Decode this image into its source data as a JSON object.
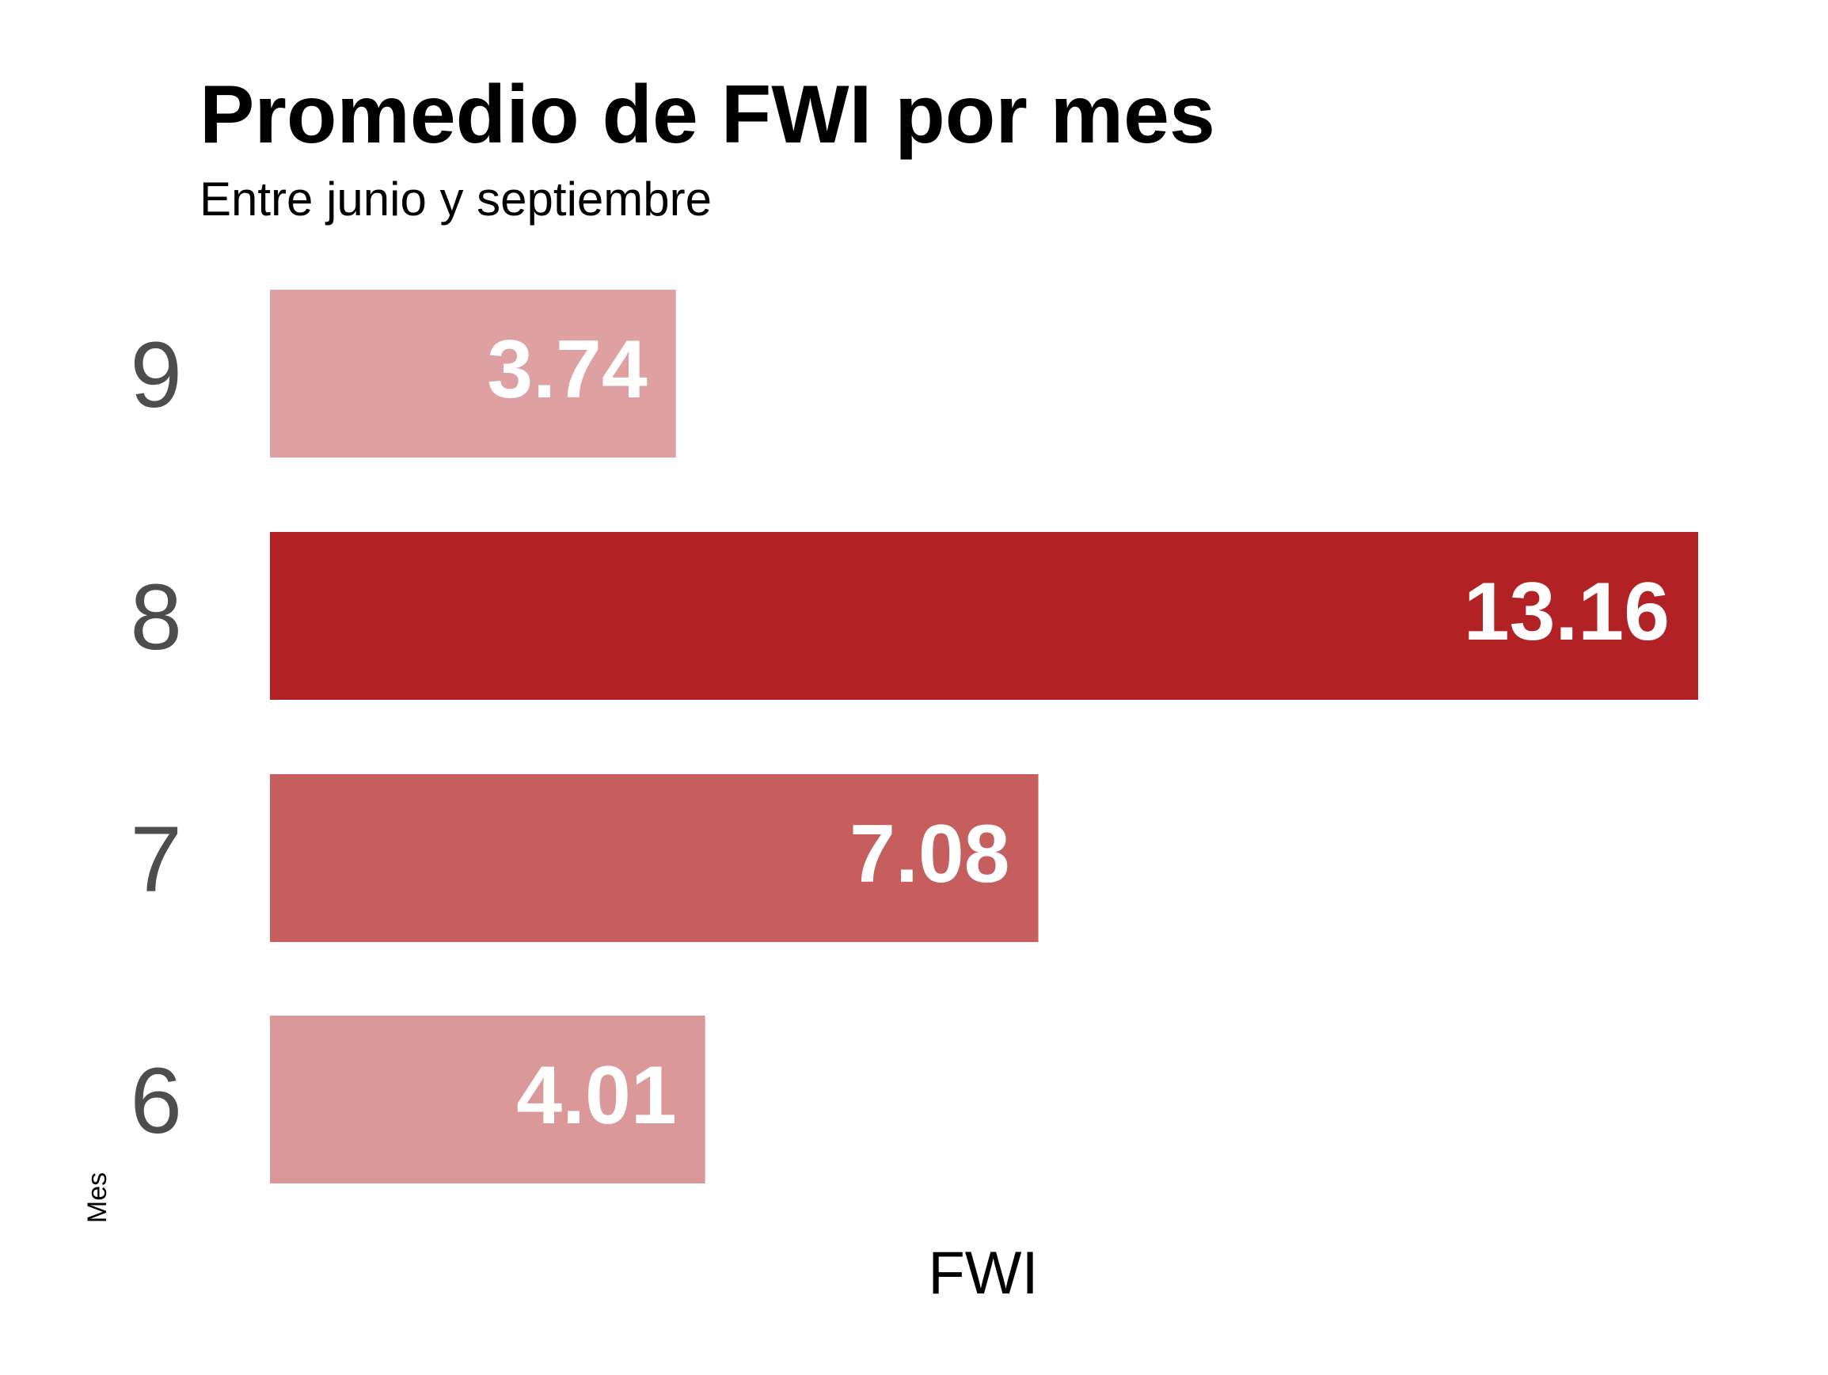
{
  "chart_data": {
    "type": "bar",
    "orientation": "horizontal",
    "title": "Promedio de FWI por mes",
    "subtitle": "Entre junio y septiembre",
    "xlabel": "FWI",
    "ylabel": "Mes",
    "categories": [
      "6",
      "7",
      "8",
      "9"
    ],
    "values": [
      4.01,
      7.08,
      13.16,
      3.74
    ],
    "value_labels": [
      "4.01",
      "7.08",
      "13.16",
      "3.74"
    ],
    "colors": [
      "#db9898",
      "#c65e5e",
      "#b22124",
      "#dea0a0"
    ],
    "xlim": [
      0,
      13.16
    ],
    "grid": false,
    "legend": "none"
  }
}
